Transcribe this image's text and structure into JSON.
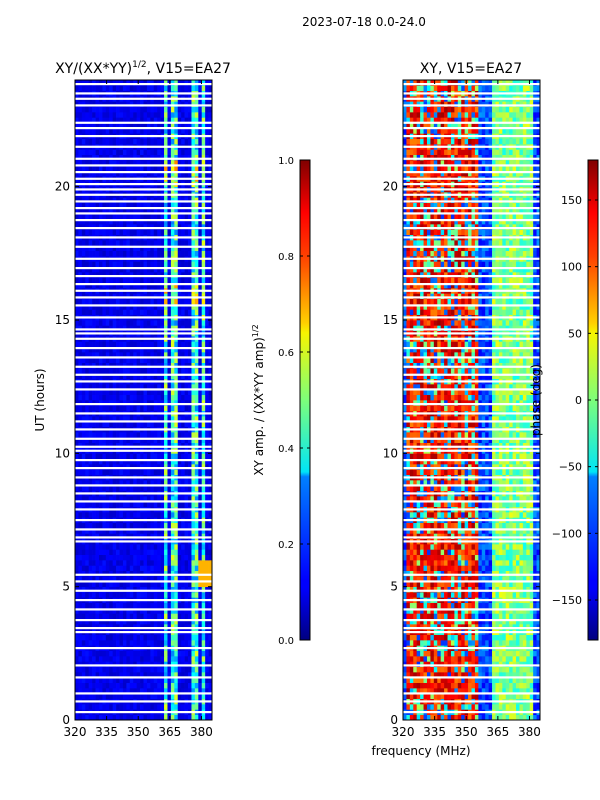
{
  "chart_data": {
    "type": "heatmap",
    "suptitle": "2023-07-18 0.0-24.0",
    "xlabel_shared": "frequency (MHz)",
    "panels": [
      {
        "id": "amp",
        "title": "XY/(XX*YY)",
        "title_sup": "1/2",
        "title_suffix": ", V15=EA27",
        "ylabel": "UT (hours)",
        "xlim": [
          320,
          385
        ],
        "ylim": [
          0,
          24
        ],
        "xticks": [
          320,
          335,
          350,
          365,
          380
        ],
        "yticks": [
          0,
          5,
          10,
          15,
          20
        ],
        "value_range": [
          0.0,
          1.0
        ],
        "colorbar": {
          "label": "XY amp. / (XX*YY amp)",
          "label_sup": "1/2",
          "ticks": [
            "0.0",
            "0.2",
            "0.4",
            "0.6",
            "0.8",
            "1.0"
          ],
          "tick_values": [
            0.0,
            0.2,
            0.4,
            0.6,
            0.8,
            1.0
          ],
          "range": [
            0.0,
            1.0
          ]
        }
      },
      {
        "id": "phase",
        "title": "XY, V15=EA27",
        "xlim": [
          320,
          385
        ],
        "ylim": [
          0,
          24
        ],
        "xticks": [
          320,
          335,
          350,
          365,
          380
        ],
        "yticks": [
          0,
          5,
          10,
          15,
          20
        ],
        "value_range": [
          -180,
          180
        ],
        "colorbar": {
          "label": "phase (deg)",
          "ticks": [
            "−150",
            "−100",
            "−50",
            "0",
            "50",
            "100",
            "150"
          ],
          "tick_values": [
            -150,
            -100,
            -50,
            0,
            50,
            100,
            150
          ],
          "range": [
            -180,
            180
          ]
        }
      }
    ],
    "flagged_gap_hours": [
      0.3,
      0.7,
      1.0,
      1.6,
      2.05,
      2.7,
      3.3,
      3.45,
      3.75,
      4.15,
      4.5,
      4.85,
      5.2,
      5.45,
      6.7,
      6.85,
      7.15,
      7.5,
      7.9,
      8.2,
      8.5,
      8.8,
      9.1,
      9.45,
      9.75,
      10.1,
      10.25,
      10.55,
      10.9,
      11.2,
      11.5,
      11.85,
      12.4,
      12.7,
      12.95,
      13.25,
      13.6,
      13.95,
      14.3,
      14.5,
      14.65,
      15.1,
      15.55,
      15.85,
      16.1,
      16.35,
      16.65,
      16.95,
      17.3,
      17.75,
      18.1,
      18.45,
      18.75,
      19.0,
      19.2,
      19.45,
      19.7,
      19.9,
      20.1,
      20.3,
      20.55,
      20.8,
      21.05,
      21.5,
      21.9,
      22.2,
      22.4,
      23.05,
      23.3,
      23.5,
      23.85
    ],
    "amp_active_bands_mhz": [
      [
        363,
        364.5
      ],
      [
        366,
        368
      ],
      [
        370,
        371
      ],
      [
        375,
        379
      ],
      [
        379.8,
        381
      ]
    ]
  }
}
